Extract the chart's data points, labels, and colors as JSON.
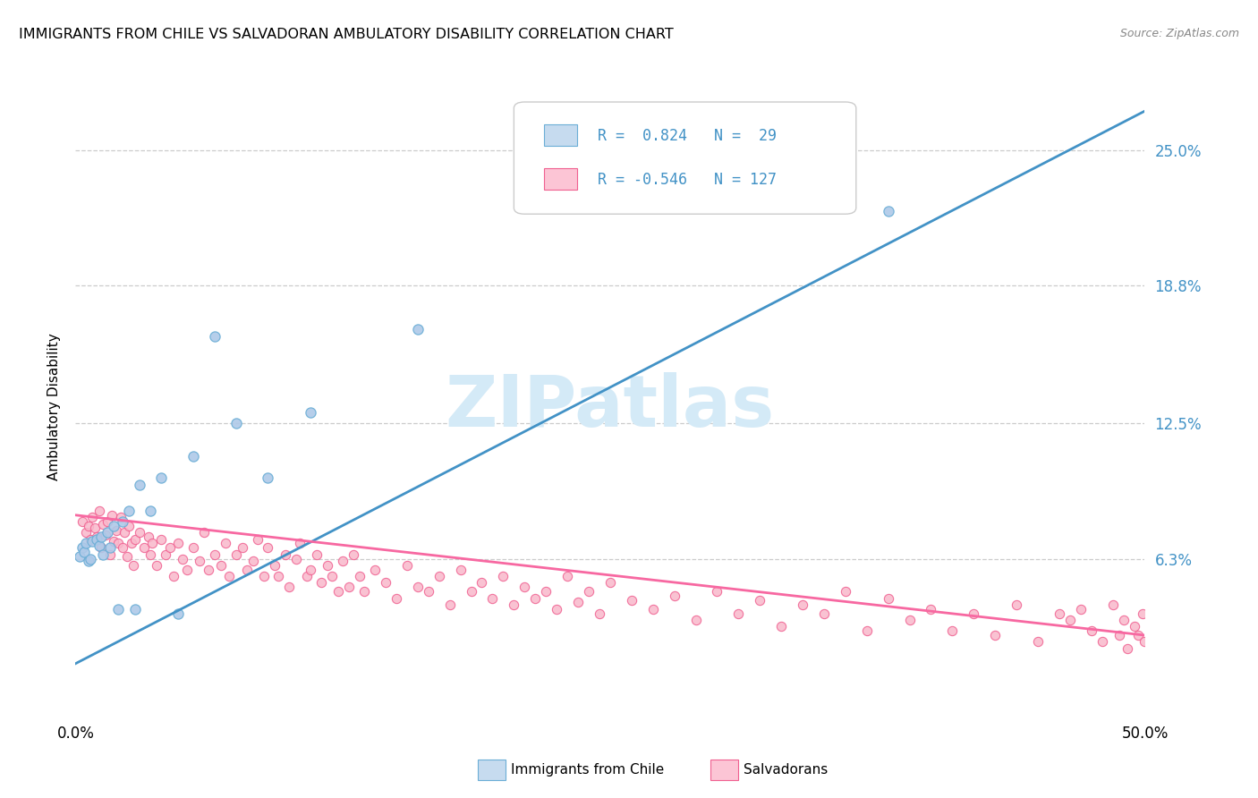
{
  "title": "IMMIGRANTS FROM CHILE VS SALVADORAN AMBULATORY DISABILITY CORRELATION CHART",
  "source": "Source: ZipAtlas.com",
  "ylabel": "Ambulatory Disability",
  "xlim": [
    0.0,
    0.5
  ],
  "ylim": [
    -0.01,
    0.275
  ],
  "ytick_positions": [
    0.063,
    0.125,
    0.188,
    0.25
  ],
  "ytick_labels": [
    "6.3%",
    "12.5%",
    "18.8%",
    "25.0%"
  ],
  "xtick_positions": [
    0.0,
    0.5
  ],
  "xtick_labels": [
    "0.0%",
    "50.0%"
  ],
  "r_chile": 0.824,
  "n_chile": 29,
  "r_salvador": -0.546,
  "n_salvador": 127,
  "blue_marker_face": "#aec9e8",
  "blue_marker_edge": "#6baed6",
  "pink_marker_face": "#f9b8cb",
  "pink_marker_edge": "#f06090",
  "blue_legend_face": "#c6dbef",
  "pink_legend_face": "#fcc5d5",
  "line_blue": "#4292c6",
  "line_pink": "#f768a1",
  "legend_text_color": "#4292c6",
  "background": "#ffffff",
  "grid_color": "#cccccc",
  "watermark_text": "ZIPatlas",
  "watermark_color": "#d4eaf7",
  "chile_line_x": [
    0.0,
    0.5
  ],
  "chile_line_y": [
    0.015,
    0.268
  ],
  "salvador_line_x": [
    0.0,
    0.5
  ],
  "salvador_line_y": [
    0.083,
    0.028
  ],
  "chile_x": [
    0.002,
    0.003,
    0.004,
    0.005,
    0.006,
    0.007,
    0.008,
    0.01,
    0.011,
    0.012,
    0.013,
    0.015,
    0.016,
    0.018,
    0.02,
    0.022,
    0.025,
    0.028,
    0.03,
    0.035,
    0.04,
    0.048,
    0.055,
    0.065,
    0.075,
    0.09,
    0.11,
    0.16,
    0.38
  ],
  "chile_y": [
    0.064,
    0.068,
    0.066,
    0.07,
    0.062,
    0.063,
    0.071,
    0.072,
    0.069,
    0.073,
    0.065,
    0.075,
    0.068,
    0.078,
    0.04,
    0.08,
    0.085,
    0.04,
    0.097,
    0.085,
    0.1,
    0.038,
    0.11,
    0.165,
    0.125,
    0.1,
    0.13,
    0.168,
    0.222
  ],
  "salvador_x": [
    0.003,
    0.005,
    0.006,
    0.007,
    0.008,
    0.009,
    0.01,
    0.011,
    0.012,
    0.013,
    0.014,
    0.015,
    0.016,
    0.017,
    0.018,
    0.019,
    0.02,
    0.021,
    0.022,
    0.023,
    0.024,
    0.025,
    0.026,
    0.027,
    0.028,
    0.03,
    0.032,
    0.034,
    0.035,
    0.036,
    0.038,
    0.04,
    0.042,
    0.044,
    0.046,
    0.048,
    0.05,
    0.052,
    0.055,
    0.058,
    0.06,
    0.062,
    0.065,
    0.068,
    0.07,
    0.072,
    0.075,
    0.078,
    0.08,
    0.083,
    0.085,
    0.088,
    0.09,
    0.093,
    0.095,
    0.098,
    0.1,
    0.103,
    0.105,
    0.108,
    0.11,
    0.113,
    0.115,
    0.118,
    0.12,
    0.123,
    0.125,
    0.128,
    0.13,
    0.133,
    0.135,
    0.14,
    0.145,
    0.15,
    0.155,
    0.16,
    0.165,
    0.17,
    0.175,
    0.18,
    0.185,
    0.19,
    0.195,
    0.2,
    0.205,
    0.21,
    0.215,
    0.22,
    0.225,
    0.23,
    0.235,
    0.24,
    0.245,
    0.25,
    0.26,
    0.27,
    0.28,
    0.29,
    0.3,
    0.31,
    0.32,
    0.33,
    0.34,
    0.35,
    0.36,
    0.37,
    0.38,
    0.39,
    0.4,
    0.41,
    0.42,
    0.43,
    0.44,
    0.45,
    0.46,
    0.465,
    0.47,
    0.475,
    0.48,
    0.485,
    0.488,
    0.49,
    0.492,
    0.495,
    0.497,
    0.499,
    0.5
  ],
  "salvador_y": [
    0.08,
    0.075,
    0.078,
    0.072,
    0.082,
    0.077,
    0.073,
    0.085,
    0.068,
    0.079,
    0.074,
    0.08,
    0.065,
    0.083,
    0.071,
    0.076,
    0.07,
    0.082,
    0.068,
    0.075,
    0.064,
    0.078,
    0.07,
    0.06,
    0.072,
    0.075,
    0.068,
    0.073,
    0.065,
    0.07,
    0.06,
    0.072,
    0.065,
    0.068,
    0.055,
    0.07,
    0.063,
    0.058,
    0.068,
    0.062,
    0.075,
    0.058,
    0.065,
    0.06,
    0.07,
    0.055,
    0.065,
    0.068,
    0.058,
    0.062,
    0.072,
    0.055,
    0.068,
    0.06,
    0.055,
    0.065,
    0.05,
    0.063,
    0.07,
    0.055,
    0.058,
    0.065,
    0.052,
    0.06,
    0.055,
    0.048,
    0.062,
    0.05,
    0.065,
    0.055,
    0.048,
    0.058,
    0.052,
    0.045,
    0.06,
    0.05,
    0.048,
    0.055,
    0.042,
    0.058,
    0.048,
    0.052,
    0.045,
    0.055,
    0.042,
    0.05,
    0.045,
    0.048,
    0.04,
    0.055,
    0.043,
    0.048,
    0.038,
    0.052,
    0.044,
    0.04,
    0.046,
    0.035,
    0.048,
    0.038,
    0.044,
    0.032,
    0.042,
    0.038,
    0.048,
    0.03,
    0.045,
    0.035,
    0.04,
    0.03,
    0.038,
    0.028,
    0.042,
    0.025,
    0.038,
    0.035,
    0.04,
    0.03,
    0.025,
    0.042,
    0.028,
    0.035,
    0.022,
    0.032,
    0.028,
    0.038,
    0.025
  ]
}
